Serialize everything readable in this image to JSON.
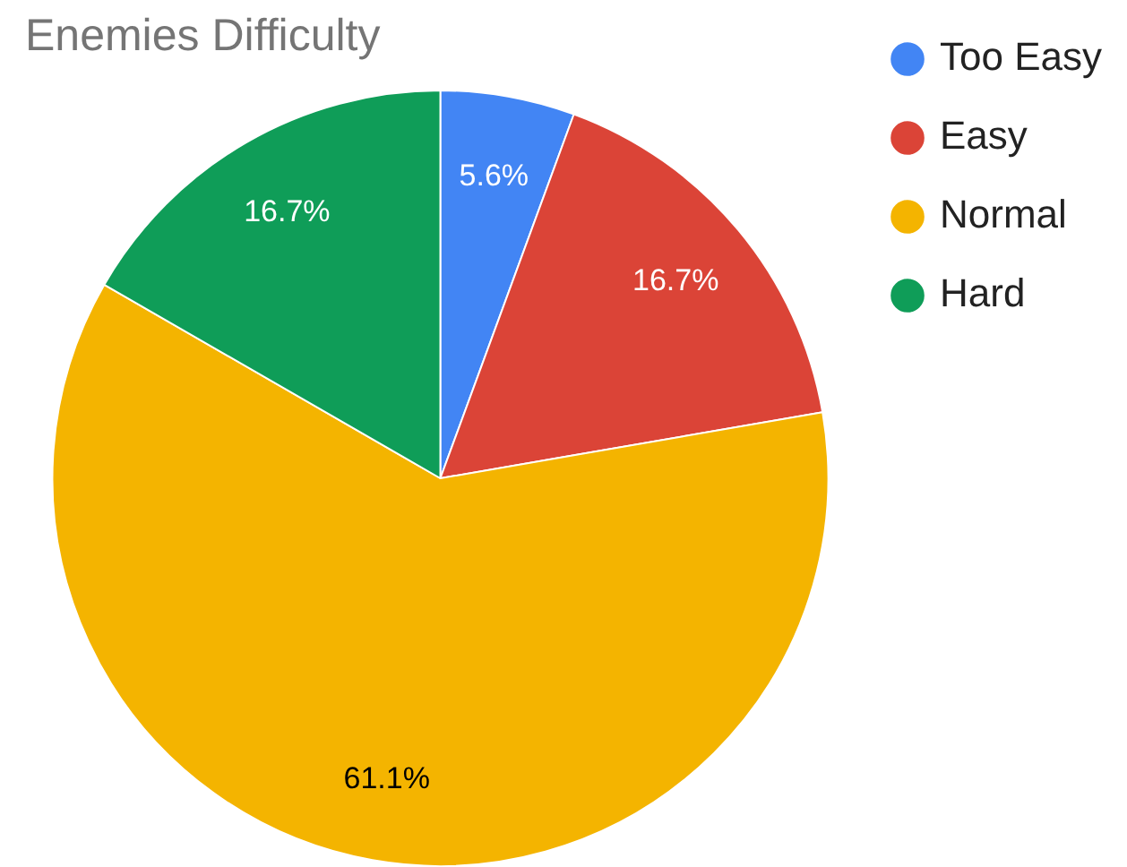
{
  "chart_data": {
    "type": "pie",
    "title": "Enemies Difficulty",
    "categories": [
      "Too Easy",
      "Easy",
      "Normal",
      "Hard"
    ],
    "values": [
      5.6,
      16.7,
      61.1,
      16.7
    ],
    "colors": [
      "#4285f4",
      "#db4437",
      "#f4b400",
      "#0f9d58"
    ],
    "value_labels": [
      "5.6%",
      "16.7%",
      "61.1%",
      "16.7%"
    ],
    "legend": "top right"
  }
}
